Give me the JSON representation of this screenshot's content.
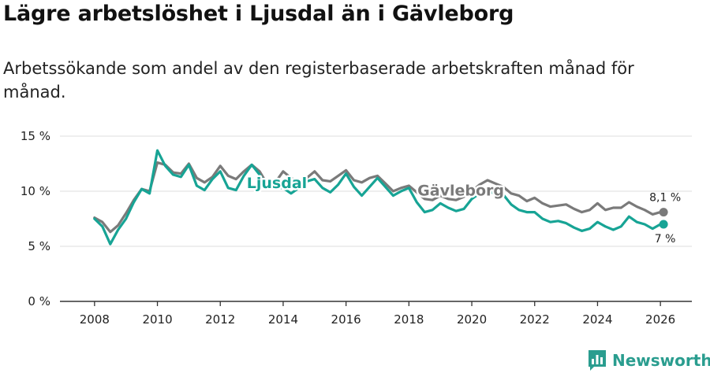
{
  "header": {
    "title": "Lägre arbetslöshet i Ljusdal än i Gävleborg",
    "subtitle": "Arbetssökande som andel av den registerbaserade arbetskraften månad för månad."
  },
  "brand": {
    "name": "Newsworthy"
  },
  "colors": {
    "ljusdal": "#17a495",
    "gavleborg": "#7a7a7a",
    "grid": "#dedede",
    "axis": "#333333",
    "brand": "#2a9d8f"
  },
  "chart_data": {
    "type": "line",
    "title": "Lägre arbetslöshet i Ljusdal än i Gävleborg",
    "ylabel": "",
    "xlabel": "",
    "ylim": [
      0,
      15
    ],
    "xlim": [
      2006.9,
      2027.0
    ],
    "y_ticks": [
      0,
      5,
      10,
      15
    ],
    "y_tick_labels": [
      "0 %",
      "5 %",
      "10 %",
      "15 %"
    ],
    "x_ticks": [
      2008,
      2010,
      2012,
      2014,
      2016,
      2018,
      2020,
      2022,
      2024,
      2026
    ],
    "x_tick_labels": [
      "2008",
      "2010",
      "2012",
      "2014",
      "2016",
      "2018",
      "2020",
      "2022",
      "2024",
      "2026"
    ],
    "series": [
      {
        "name": "Gävleborg",
        "color": "#7a7a7a",
        "end_label": "8,1 %",
        "points": [
          [
            2008.0,
            7.6
          ],
          [
            2008.25,
            7.2
          ],
          [
            2008.5,
            6.3
          ],
          [
            2008.75,
            6.9
          ],
          [
            2009.0,
            8.0
          ],
          [
            2009.25,
            9.2
          ],
          [
            2009.5,
            10.2
          ],
          [
            2009.75,
            10.0
          ],
          [
            2010.0,
            12.6
          ],
          [
            2010.25,
            12.4
          ],
          [
            2010.5,
            11.7
          ],
          [
            2010.75,
            11.6
          ],
          [
            2011.0,
            12.5
          ],
          [
            2011.25,
            11.2
          ],
          [
            2011.5,
            10.8
          ],
          [
            2011.75,
            11.3
          ],
          [
            2012.0,
            12.3
          ],
          [
            2012.25,
            11.4
          ],
          [
            2012.5,
            11.1
          ],
          [
            2012.75,
            11.8
          ],
          [
            2013.0,
            12.4
          ],
          [
            2013.25,
            11.8
          ],
          [
            2013.5,
            10.6
          ],
          [
            2013.75,
            10.8
          ],
          [
            2014.0,
            11.8
          ],
          [
            2014.25,
            11.2
          ],
          [
            2014.5,
            10.8
          ],
          [
            2014.75,
            11.2
          ],
          [
            2015.0,
            11.8
          ],
          [
            2015.25,
            11.0
          ],
          [
            2015.5,
            10.9
          ],
          [
            2015.75,
            11.4
          ],
          [
            2016.0,
            11.9
          ],
          [
            2016.25,
            11.0
          ],
          [
            2016.5,
            10.8
          ],
          [
            2016.75,
            11.2
          ],
          [
            2017.0,
            11.4
          ],
          [
            2017.25,
            10.7
          ],
          [
            2017.5,
            10.0
          ],
          [
            2017.75,
            10.3
          ],
          [
            2018.0,
            10.5
          ],
          [
            2018.25,
            9.9
          ],
          [
            2018.5,
            9.3
          ],
          [
            2018.75,
            9.2
          ],
          [
            2019.0,
            9.6
          ],
          [
            2019.25,
            9.3
          ],
          [
            2019.5,
            9.2
          ],
          [
            2019.75,
            9.5
          ],
          [
            2020.0,
            10.0
          ],
          [
            2020.25,
            10.6
          ],
          [
            2020.5,
            11.0
          ],
          [
            2020.75,
            10.7
          ],
          [
            2021.0,
            10.4
          ],
          [
            2021.25,
            9.8
          ],
          [
            2021.5,
            9.6
          ],
          [
            2021.75,
            9.1
          ],
          [
            2022.0,
            9.4
          ],
          [
            2022.25,
            8.9
          ],
          [
            2022.5,
            8.6
          ],
          [
            2022.75,
            8.7
          ],
          [
            2023.0,
            8.8
          ],
          [
            2023.25,
            8.4
          ],
          [
            2023.5,
            8.1
          ],
          [
            2023.75,
            8.3
          ],
          [
            2024.0,
            8.9
          ],
          [
            2024.25,
            8.3
          ],
          [
            2024.5,
            8.5
          ],
          [
            2024.75,
            8.5
          ],
          [
            2025.0,
            9.0
          ],
          [
            2025.25,
            8.6
          ],
          [
            2025.5,
            8.3
          ],
          [
            2025.75,
            7.9
          ],
          [
            2026.0,
            8.1
          ],
          [
            2026.1,
            8.1
          ]
        ]
      },
      {
        "name": "Ljusdal",
        "color": "#17a495",
        "end_label": "7 %",
        "points": [
          [
            2008.0,
            7.5
          ],
          [
            2008.25,
            6.8
          ],
          [
            2008.5,
            5.2
          ],
          [
            2008.75,
            6.5
          ],
          [
            2009.0,
            7.5
          ],
          [
            2009.25,
            9.0
          ],
          [
            2009.5,
            10.2
          ],
          [
            2009.75,
            9.8
          ],
          [
            2010.0,
            13.7
          ],
          [
            2010.25,
            12.3
          ],
          [
            2010.5,
            11.5
          ],
          [
            2010.75,
            11.3
          ],
          [
            2011.0,
            12.4
          ],
          [
            2011.25,
            10.5
          ],
          [
            2011.5,
            10.1
          ],
          [
            2011.75,
            11.1
          ],
          [
            2012.0,
            11.8
          ],
          [
            2012.25,
            10.3
          ],
          [
            2012.5,
            10.1
          ],
          [
            2012.75,
            11.4
          ],
          [
            2013.0,
            12.4
          ],
          [
            2013.25,
            11.5
          ],
          [
            2013.5,
            10.4
          ],
          [
            2013.75,
            10.3
          ],
          [
            2014.0,
            10.3
          ],
          [
            2014.25,
            9.8
          ],
          [
            2014.5,
            10.3
          ],
          [
            2014.75,
            10.9
          ],
          [
            2015.0,
            11.1
          ],
          [
            2015.25,
            10.3
          ],
          [
            2015.5,
            9.9
          ],
          [
            2015.75,
            10.6
          ],
          [
            2016.0,
            11.6
          ],
          [
            2016.25,
            10.4
          ],
          [
            2016.5,
            9.6
          ],
          [
            2016.75,
            10.4
          ],
          [
            2017.0,
            11.2
          ],
          [
            2017.25,
            10.4
          ],
          [
            2017.5,
            9.6
          ],
          [
            2017.75,
            10.0
          ],
          [
            2018.0,
            10.3
          ],
          [
            2018.25,
            9.0
          ],
          [
            2018.5,
            8.1
          ],
          [
            2018.75,
            8.3
          ],
          [
            2019.0,
            8.9
          ],
          [
            2019.25,
            8.5
          ],
          [
            2019.5,
            8.2
          ],
          [
            2019.75,
            8.4
          ],
          [
            2020.0,
            9.3
          ],
          [
            2020.25,
            9.8
          ],
          [
            2020.5,
            10.0
          ],
          [
            2020.75,
            9.8
          ],
          [
            2021.0,
            9.7
          ],
          [
            2021.25,
            8.8
          ],
          [
            2021.5,
            8.3
          ],
          [
            2021.75,
            8.1
          ],
          [
            2022.0,
            8.1
          ],
          [
            2022.25,
            7.5
          ],
          [
            2022.5,
            7.2
          ],
          [
            2022.75,
            7.3
          ],
          [
            2023.0,
            7.1
          ],
          [
            2023.25,
            6.7
          ],
          [
            2023.5,
            6.4
          ],
          [
            2023.75,
            6.6
          ],
          [
            2024.0,
            7.2
          ],
          [
            2024.25,
            6.8
          ],
          [
            2024.5,
            6.5
          ],
          [
            2024.75,
            6.8
          ],
          [
            2025.0,
            7.7
          ],
          [
            2025.25,
            7.2
          ],
          [
            2025.5,
            7.0
          ],
          [
            2025.75,
            6.6
          ],
          [
            2026.0,
            7.0
          ],
          [
            2026.1,
            7.0
          ]
        ]
      }
    ]
  }
}
